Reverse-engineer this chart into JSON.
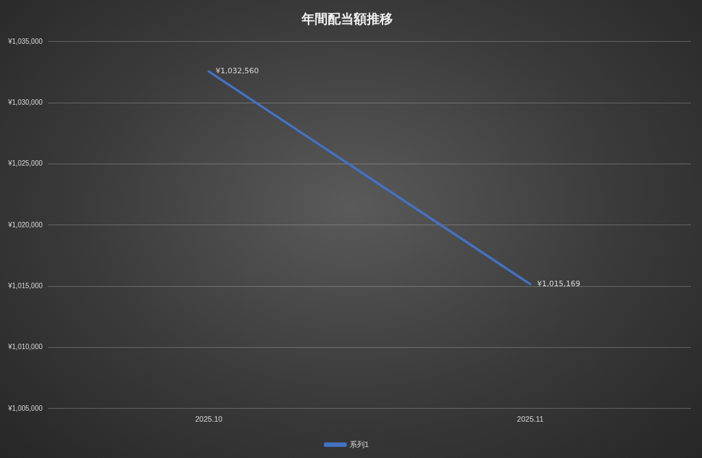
{
  "chart_data": {
    "type": "line",
    "title": "年間配当額推移",
    "categories": [
      "2025.10",
      "2025.11"
    ],
    "series": [
      {
        "name": "系列1",
        "color": "#4472c4",
        "values": [
          1032560,
          1015169
        ],
        "value_labels": [
          "¥1,032,560",
          "¥1,015,169"
        ]
      }
    ],
    "ylim": [
      1005000,
      1035000
    ],
    "yticks": [
      {
        "value": 1005000,
        "label": "¥1,005,000"
      },
      {
        "value": 1010000,
        "label": "¥1,010,000"
      },
      {
        "value": 1015000,
        "label": "¥1,015,000"
      },
      {
        "value": 1020000,
        "label": "¥1,020,000"
      },
      {
        "value": 1025000,
        "label": "¥1,025,000"
      },
      {
        "value": 1030000,
        "label": "¥1,030,000"
      },
      {
        "value": 1035000,
        "label": "¥1,035,000"
      }
    ],
    "grid": "y",
    "legend": "bottom",
    "marker": "none",
    "line_style": "solid"
  }
}
